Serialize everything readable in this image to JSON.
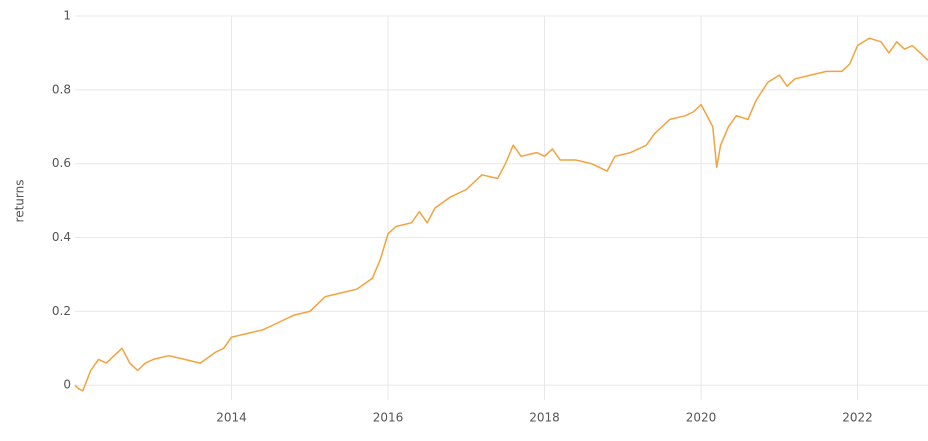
{
  "chart_data": {
    "type": "line",
    "y_label": "returns",
    "x": [
      2012.0,
      2012.05,
      2012.1,
      2012.2,
      2012.3,
      2012.4,
      2012.5,
      2012.6,
      2012.7,
      2012.8,
      2012.9,
      2013.0,
      2013.2,
      2013.4,
      2013.6,
      2013.8,
      2013.9,
      2014.0,
      2014.2,
      2014.4,
      2014.6,
      2014.8,
      2015.0,
      2015.2,
      2015.4,
      2015.6,
      2015.8,
      2015.9,
      2016.0,
      2016.1,
      2016.3,
      2016.4,
      2016.5,
      2016.6,
      2016.8,
      2017.0,
      2017.2,
      2017.4,
      2017.5,
      2017.6,
      2017.7,
      2017.9,
      2018.0,
      2018.1,
      2018.2,
      2018.4,
      2018.6,
      2018.8,
      2018.9,
      2019.1,
      2019.3,
      2019.4,
      2019.6,
      2019.8,
      2019.9,
      2020.0,
      2020.1,
      2020.15,
      2020.2,
      2020.25,
      2020.35,
      2020.45,
      2020.6,
      2020.7,
      2020.85,
      2021.0,
      2021.1,
      2021.2,
      2021.4,
      2021.6,
      2021.8,
      2021.9,
      2022.0,
      2022.15,
      2022.3,
      2022.4,
      2022.5,
      2022.6,
      2022.7,
      2022.8,
      2022.9
    ],
    "series": [
      {
        "name": "returns",
        "color": "#f4a23f",
        "values": [
          0,
          -0.01,
          -0.015,
          0.04,
          0.07,
          0.06,
          0.08,
          0.1,
          0.06,
          0.04,
          0.06,
          0.07,
          0.08,
          0.07,
          0.06,
          0.09,
          0.1,
          0.13,
          0.14,
          0.15,
          0.17,
          0.19,
          0.2,
          0.24,
          0.25,
          0.26,
          0.29,
          0.34,
          0.41,
          0.43,
          0.44,
          0.47,
          0.44,
          0.48,
          0.51,
          0.53,
          0.57,
          0.56,
          0.6,
          0.65,
          0.62,
          0.63,
          0.62,
          0.64,
          0.61,
          0.61,
          0.6,
          0.58,
          0.62,
          0.63,
          0.65,
          0.68,
          0.72,
          0.73,
          0.74,
          0.76,
          0.72,
          0.7,
          0.59,
          0.65,
          0.7,
          0.73,
          0.72,
          0.77,
          0.82,
          0.84,
          0.81,
          0.83,
          0.84,
          0.85,
          0.85,
          0.87,
          0.92,
          0.94,
          0.93,
          0.9,
          0.93,
          0.91,
          0.92,
          0.9,
          0.88
        ]
      }
    ],
    "xlim": [
      2012.0,
      2022.9
    ],
    "ylim": [
      -0.04,
      1
    ],
    "xticks": [
      2014,
      2016,
      2018,
      2020,
      2022
    ],
    "yticks": [
      0,
      0.2,
      0.4,
      0.6,
      0.8,
      1
    ],
    "grid": true
  }
}
